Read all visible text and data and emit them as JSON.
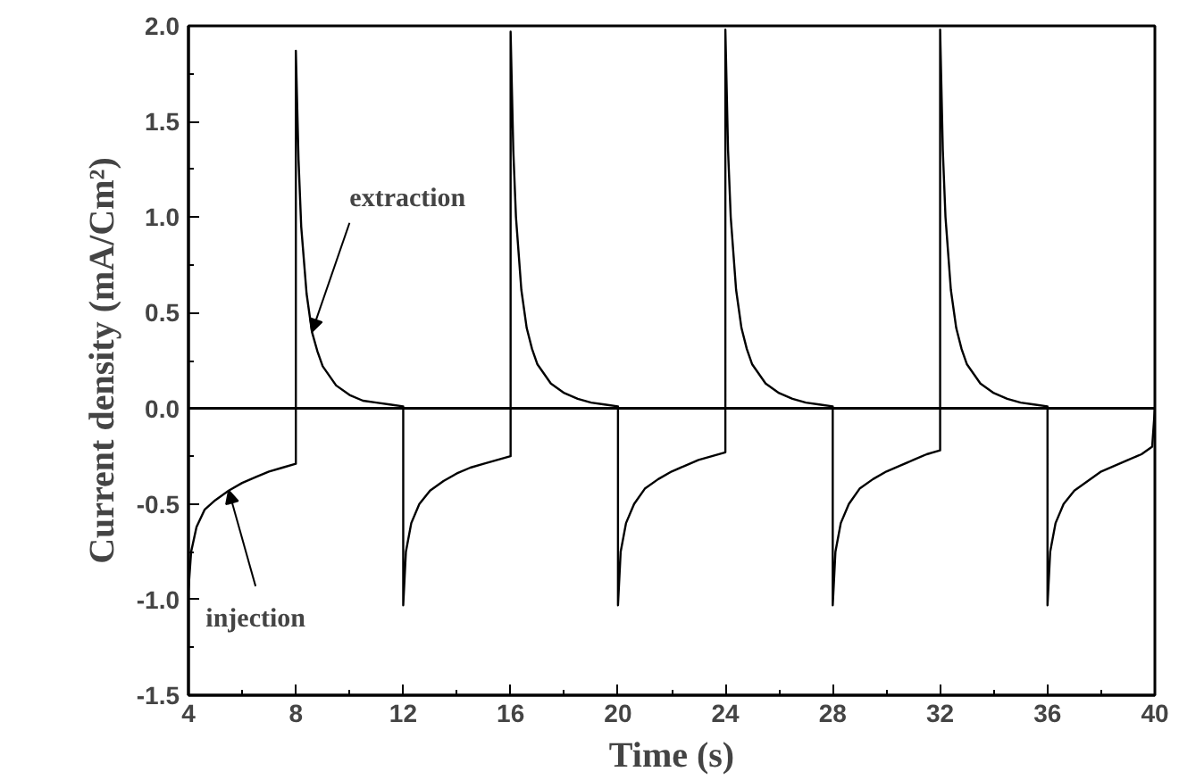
{
  "chart_data": {
    "type": "line",
    "xlabel": "Time (s)",
    "ylabel": "Current density (mA/Cm²)",
    "xlim": [
      4,
      40
    ],
    "ylim": [
      -1.5,
      2.0
    ],
    "xticks": [
      4,
      {
        "value": 6,
        "label": null
      },
      8,
      {
        "value": 10,
        "label": null
      },
      12,
      {
        "value": 14,
        "label": null
      },
      16,
      {
        "value": 18,
        "label": null
      },
      20,
      {
        "value": 22,
        "label": null
      },
      24,
      {
        "value": 26,
        "label": null
      },
      28,
      {
        "value": 30,
        "label": null
      },
      32,
      {
        "value": 34,
        "label": null
      },
      36,
      {
        "value": 38,
        "label": null
      },
      40
    ],
    "yticks": [
      {
        "value": -1.5,
        "label": "-1.5"
      },
      {
        "value": -1.25,
        "label": null
      },
      {
        "value": -1.0,
        "label": "-1.0"
      },
      {
        "value": -0.75,
        "label": null
      },
      {
        "value": -0.5,
        "label": "-0.5"
      },
      {
        "value": -0.25,
        "label": null
      },
      {
        "value": 0.0,
        "label": "0.0"
      },
      {
        "value": 0.25,
        "label": null
      },
      {
        "value": 0.5,
        "label": "0.5"
      },
      {
        "value": 0.75,
        "label": null
      },
      {
        "value": 1.0,
        "label": "1.0"
      },
      {
        "value": 1.25,
        "label": null
      },
      {
        "value": 1.5,
        "label": "1.5"
      },
      {
        "value": 1.75,
        "label": null
      },
      {
        "value": 2.0,
        "label": "2.0"
      }
    ],
    "grid": false,
    "marker": "none",
    "line_style": "solid",
    "ref_lines": [
      {
        "axis": "y",
        "value": 0,
        "label": null,
        "color": "#000000"
      }
    ],
    "annotations": [
      {
        "text": "extraction",
        "x": 8.6,
        "y": 0.4
      },
      {
        "text": "injection",
        "x": 5.5,
        "y": -0.43
      }
    ],
    "series": [
      {
        "color": "#000000",
        "x": [
          4,
          4.1,
          4.3,
          4.6,
          5,
          5.5,
          6,
          6.5,
          7,
          7.5,
          8,
          8,
          8.1,
          8.2,
          8.4,
          8.6,
          8.8,
          9,
          9.5,
          10,
          10.5,
          11,
          11.5,
          12,
          12,
          12.1,
          12.3,
          12.6,
          13,
          13.5,
          14,
          14.5,
          15,
          15.5,
          16,
          16,
          16.1,
          16.2,
          16.4,
          16.6,
          16.8,
          17,
          17.5,
          18,
          18.5,
          19,
          19.5,
          20,
          20,
          20.1,
          20.3,
          20.6,
          21,
          21.5,
          22,
          22.5,
          23,
          23.5,
          24,
          24,
          24.1,
          24.2,
          24.4,
          24.6,
          24.8,
          25,
          25.5,
          26,
          26.5,
          27,
          27.5,
          28,
          28,
          28.1,
          28.3,
          28.6,
          29,
          29.5,
          30,
          30.5,
          31,
          31.5,
          32,
          32,
          32.1,
          32.2,
          32.4,
          32.6,
          32.8,
          33,
          33.5,
          34,
          34.5,
          35,
          35.5,
          36,
          36,
          36.1,
          36.3,
          36.6,
          37,
          37.5,
          38,
          38.5,
          39,
          39.5,
          39.9,
          40
        ],
        "values": [
          -0.95,
          -0.75,
          -0.62,
          -0.53,
          -0.48,
          -0.43,
          -0.39,
          -0.36,
          -0.33,
          -0.31,
          -0.29,
          1.87,
          1.3,
          0.95,
          0.6,
          0.4,
          0.3,
          0.22,
          0.12,
          0.07,
          0.04,
          0.03,
          0.02,
          0.01,
          -1.03,
          -0.75,
          -0.6,
          -0.5,
          -0.43,
          -0.38,
          -0.34,
          -0.31,
          -0.29,
          -0.27,
          -0.25,
          1.97,
          1.35,
          1.0,
          0.62,
          0.42,
          0.31,
          0.23,
          0.13,
          0.08,
          0.05,
          0.03,
          0.02,
          0.01,
          -1.03,
          -0.75,
          -0.6,
          -0.5,
          -0.42,
          -0.37,
          -0.33,
          -0.3,
          -0.27,
          -0.25,
          -0.23,
          1.98,
          1.35,
          1.0,
          0.62,
          0.42,
          0.31,
          0.23,
          0.13,
          0.08,
          0.05,
          0.03,
          0.02,
          0.01,
          -1.03,
          -0.75,
          -0.6,
          -0.5,
          -0.42,
          -0.37,
          -0.33,
          -0.3,
          -0.27,
          -0.24,
          -0.22,
          1.98,
          1.35,
          1.0,
          0.62,
          0.42,
          0.31,
          0.23,
          0.13,
          0.08,
          0.05,
          0.03,
          0.02,
          0.01,
          -1.03,
          -0.75,
          -0.6,
          -0.5,
          -0.43,
          -0.38,
          -0.33,
          -0.3,
          -0.27,
          -0.24,
          -0.2,
          0.0
        ]
      }
    ]
  }
}
